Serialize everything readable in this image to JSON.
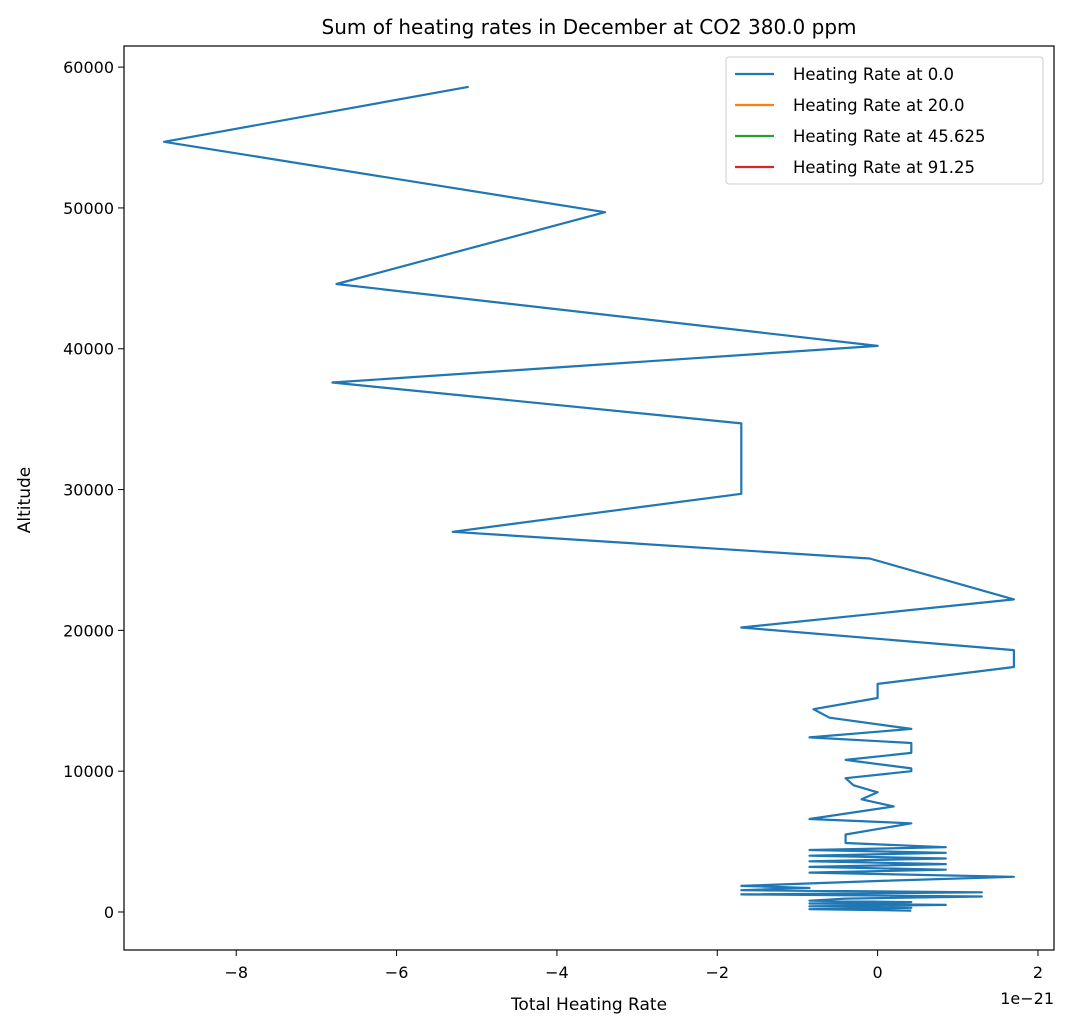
{
  "chart_data": {
    "type": "line",
    "title": "Sum of heating rates in December at CO2 380.0 ppm",
    "xlabel": "Total Heating Rate",
    "ylabel": "Altitude",
    "x_offset_text": "1e−21",
    "x_scale": 1e-21,
    "xlim": [
      -9.4,
      2.2
    ],
    "ylim": [
      -2700,
      61500
    ],
    "xticks": [
      -8,
      -6,
      -4,
      -2,
      0,
      2
    ],
    "xtick_labels": [
      "−8",
      "−6",
      "−4",
      "−2",
      "0",
      "2"
    ],
    "yticks": [
      0,
      10000,
      20000,
      30000,
      40000,
      50000,
      60000
    ],
    "ytick_labels": [
      "0",
      "10000",
      "20000",
      "30000",
      "40000",
      "50000",
      "60000"
    ],
    "grid": false,
    "legend": {
      "placement": "top-right",
      "entries": [
        "Heating Rate at 0.0",
        "Heating Rate at 20.0",
        "Heating Rate at 45.625",
        "Heating Rate at 91.25"
      ]
    },
    "series": [
      {
        "name": "Heating Rate at 0.0",
        "color": "#1f77b4",
        "points": [
          [
            0.42,
            100
          ],
          [
            -0.85,
            200
          ],
          [
            0.42,
            300
          ],
          [
            -0.85,
            400
          ],
          [
            0.85,
            500
          ],
          [
            -0.85,
            600
          ],
          [
            0.42,
            700
          ],
          [
            -0.85,
            800
          ],
          [
            -0.4,
            950
          ],
          [
            1.3,
            1100
          ],
          [
            -1.7,
            1250
          ],
          [
            1.3,
            1400
          ],
          [
            -1.7,
            1550
          ],
          [
            -0.85,
            1700
          ],
          [
            -1.7,
            1850
          ],
          [
            0.0,
            2200
          ],
          [
            1.7,
            2500
          ],
          [
            -0.85,
            2800
          ],
          [
            0.85,
            3000
          ],
          [
            -0.85,
            3200
          ],
          [
            0.85,
            3400
          ],
          [
            -0.85,
            3600
          ],
          [
            0.85,
            3800
          ],
          [
            -0.85,
            4000
          ],
          [
            0.85,
            4200
          ],
          [
            -0.85,
            4400
          ],
          [
            0.85,
            4600
          ],
          [
            -0.4,
            4900
          ],
          [
            -0.4,
            5500
          ],
          [
            0.42,
            6300
          ],
          [
            -0.85,
            6600
          ],
          [
            0.2,
            7500
          ],
          [
            -0.2,
            8000
          ],
          [
            0.0,
            8500
          ],
          [
            -0.3,
            9000
          ],
          [
            -0.4,
            9500
          ],
          [
            0.42,
            10000
          ],
          [
            0.42,
            10200
          ],
          [
            -0.4,
            10800
          ],
          [
            0.42,
            11300
          ],
          [
            0.42,
            12000
          ],
          [
            -0.85,
            12400
          ],
          [
            0.42,
            13000
          ],
          [
            -0.6,
            13800
          ],
          [
            -0.8,
            14400
          ],
          [
            0.0,
            15200
          ],
          [
            0.0,
            16200
          ],
          [
            1.7,
            17400
          ],
          [
            1.7,
            18600
          ],
          [
            -1.7,
            20200
          ],
          [
            1.7,
            22200
          ],
          [
            -0.1,
            25100
          ],
          [
            -5.3,
            27000
          ],
          [
            -1.7,
            29700
          ],
          [
            -1.7,
            34700
          ],
          [
            -6.8,
            37600
          ],
          [
            0.0,
            40200
          ],
          [
            -6.75,
            44600
          ],
          [
            -3.4,
            49700
          ],
          [
            -8.9,
            54700
          ],
          [
            -5.1,
            58600
          ]
        ]
      },
      {
        "name": "Heating Rate at 20.0",
        "color": "#ff7f0e",
        "points": []
      },
      {
        "name": "Heating Rate at 45.625",
        "color": "#2ca02c",
        "points": []
      },
      {
        "name": "Heating Rate at 91.25",
        "color": "#d62728",
        "points": []
      }
    ]
  }
}
